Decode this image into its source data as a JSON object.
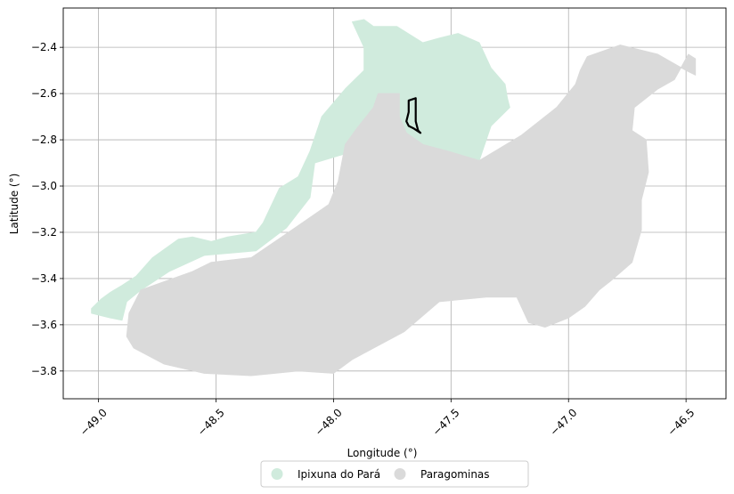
{
  "map": {
    "xlabel": "Longitude (°)",
    "ylabel": "Latitude (°)",
    "xlim": [
      -49.15,
      -46.33
    ],
    "ylim": [
      -3.92,
      -2.23
    ],
    "grid": true,
    "legend_placement": "bottom-center",
    "x_ticks": [
      {
        "value": -49.0,
        "label": "−49.0"
      },
      {
        "value": -48.5,
        "label": "−48.5"
      },
      {
        "value": -48.0,
        "label": "−48.0"
      },
      {
        "value": -47.5,
        "label": "−47.5"
      },
      {
        "value": -47.0,
        "label": "−47.0"
      },
      {
        "value": -46.5,
        "label": "−46.5"
      }
    ],
    "y_ticks": [
      {
        "value": -2.4,
        "label": "−2.4"
      },
      {
        "value": -2.6,
        "label": "−2.6"
      },
      {
        "value": -2.8,
        "label": "−2.8"
      },
      {
        "value": -3.0,
        "label": "−3.0"
      },
      {
        "value": -3.2,
        "label": "−3.2"
      },
      {
        "value": -3.4,
        "label": "−3.4"
      },
      {
        "value": -3.6,
        "label": "−3.6"
      },
      {
        "value": -3.8,
        "label": "−3.8"
      }
    ],
    "regions": [
      {
        "name": "Ipixuna do Pará",
        "color": "#d0ebdd",
        "coords": [
          [
            -49.03,
            -3.53
          ],
          [
            -48.99,
            -3.49
          ],
          [
            -48.95,
            -3.46
          ],
          [
            -48.9,
            -3.43
          ],
          [
            -48.84,
            -3.39
          ],
          [
            -48.77,
            -3.31
          ],
          [
            -48.66,
            -3.23
          ],
          [
            -48.6,
            -3.22
          ],
          [
            -48.52,
            -3.24
          ],
          [
            -48.45,
            -3.22
          ],
          [
            -48.33,
            -3.2
          ],
          [
            -48.3,
            -3.16
          ],
          [
            -48.23,
            -3.01
          ],
          [
            -48.15,
            -2.96
          ],
          [
            -48.1,
            -2.85
          ],
          [
            -48.05,
            -2.7
          ],
          [
            -47.95,
            -2.58
          ],
          [
            -47.87,
            -2.5
          ],
          [
            -47.87,
            -2.4
          ],
          [
            -47.92,
            -2.29
          ],
          [
            -47.87,
            -2.28
          ],
          [
            -47.83,
            -2.31
          ],
          [
            -47.73,
            -2.31
          ],
          [
            -47.62,
            -2.38
          ],
          [
            -47.55,
            -2.36
          ],
          [
            -47.47,
            -2.34
          ],
          [
            -47.38,
            -2.38
          ],
          [
            -47.33,
            -2.49
          ],
          [
            -47.27,
            -2.56
          ],
          [
            -47.26,
            -2.62
          ],
          [
            -47.25,
            -2.66
          ],
          [
            -47.33,
            -2.74
          ],
          [
            -47.38,
            -2.89
          ],
          [
            -47.55,
            -2.86
          ],
          [
            -47.68,
            -2.8
          ],
          [
            -47.8,
            -2.72
          ],
          [
            -47.85,
            -2.76
          ],
          [
            -47.95,
            -2.86
          ],
          [
            -48.08,
            -2.9
          ],
          [
            -48.1,
            -3.05
          ],
          [
            -48.2,
            -3.18
          ],
          [
            -48.33,
            -3.28
          ],
          [
            -48.55,
            -3.3
          ],
          [
            -48.7,
            -3.37
          ],
          [
            -48.82,
            -3.45
          ],
          [
            -48.88,
            -3.5
          ],
          [
            -48.9,
            -3.58
          ],
          [
            -48.95,
            -3.57
          ],
          [
            -49.03,
            -3.55
          ]
        ]
      },
      {
        "name": "Paragominas",
        "color": "#dadada",
        "coords": [
          [
            -48.88,
            -3.65
          ],
          [
            -48.87,
            -3.55
          ],
          [
            -48.82,
            -3.45
          ],
          [
            -48.6,
            -3.37
          ],
          [
            -48.52,
            -3.33
          ],
          [
            -48.35,
            -3.31
          ],
          [
            -48.22,
            -3.22
          ],
          [
            -48.02,
            -3.08
          ],
          [
            -47.98,
            -2.98
          ],
          [
            -47.95,
            -2.82
          ],
          [
            -47.9,
            -2.75
          ],
          [
            -47.83,
            -2.66
          ],
          [
            -47.81,
            -2.6
          ],
          [
            -47.72,
            -2.6
          ],
          [
            -47.72,
            -2.7
          ],
          [
            -47.69,
            -2.77
          ],
          [
            -47.62,
            -2.82
          ],
          [
            -47.51,
            -2.85
          ],
          [
            -47.38,
            -2.89
          ],
          [
            -47.2,
            -2.78
          ],
          [
            -47.05,
            -2.66
          ],
          [
            -46.97,
            -2.56
          ],
          [
            -46.95,
            -2.5
          ],
          [
            -46.92,
            -2.44
          ],
          [
            -46.78,
            -2.39
          ],
          [
            -46.62,
            -2.43
          ],
          [
            -46.5,
            -2.5
          ],
          [
            -46.46,
            -2.52
          ],
          [
            -46.46,
            -2.45
          ],
          [
            -46.49,
            -2.43
          ],
          [
            -46.55,
            -2.54
          ],
          [
            -46.62,
            -2.58
          ],
          [
            -46.72,
            -2.66
          ],
          [
            -46.73,
            -2.76
          ],
          [
            -46.67,
            -2.8
          ],
          [
            -46.66,
            -2.94
          ],
          [
            -46.69,
            -3.06
          ],
          [
            -46.69,
            -3.19
          ],
          [
            -46.73,
            -3.33
          ],
          [
            -46.82,
            -3.41
          ],
          [
            -46.87,
            -3.45
          ],
          [
            -46.93,
            -3.52
          ],
          [
            -47.0,
            -3.57
          ],
          [
            -47.1,
            -3.61
          ],
          [
            -47.17,
            -3.59
          ],
          [
            -47.22,
            -3.48
          ],
          [
            -47.35,
            -3.48
          ],
          [
            -47.55,
            -3.5
          ],
          [
            -47.7,
            -3.63
          ],
          [
            -47.92,
            -3.75
          ],
          [
            -48.0,
            -3.81
          ],
          [
            -48.15,
            -3.8
          ],
          [
            -48.35,
            -3.82
          ],
          [
            -48.55,
            -3.81
          ],
          [
            -48.72,
            -3.77
          ],
          [
            -48.85,
            -3.7
          ]
        ]
      }
    ],
    "outline": {
      "coords": [
        [
          -47.68,
          -2.63
        ],
        [
          -47.65,
          -2.62
        ],
        [
          -47.65,
          -2.72
        ],
        [
          -47.64,
          -2.76
        ],
        [
          -47.63,
          -2.77
        ],
        [
          -47.66,
          -2.75
        ],
        [
          -47.68,
          -2.74
        ],
        [
          -47.69,
          -2.72
        ],
        [
          -47.68,
          -2.68
        ]
      ]
    }
  }
}
